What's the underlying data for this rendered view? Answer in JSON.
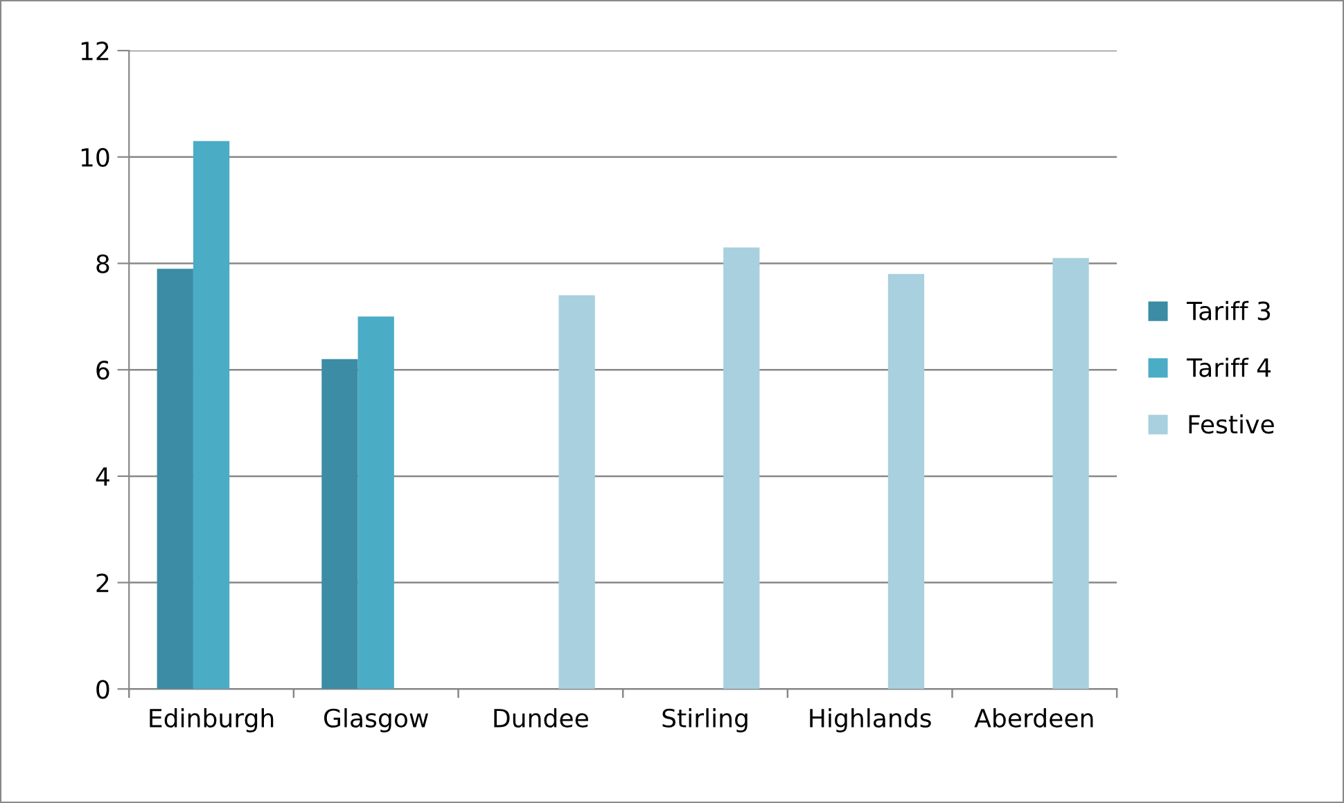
{
  "chart_data": {
    "type": "bar",
    "categories": [
      "Edinburgh",
      "Glasgow",
      "Dundee",
      "Stirling",
      "Highlands",
      "Aberdeen"
    ],
    "series": [
      {
        "name": "Tariff 3",
        "color": "#3b8ca4",
        "values": [
          7.9,
          6.2,
          null,
          null,
          null,
          null
        ]
      },
      {
        "name": "Tariff 4",
        "color": "#4bacc6",
        "values": [
          10.3,
          7.0,
          null,
          null,
          null,
          null
        ]
      },
      {
        "name": "Festive",
        "color": "#a8d0df",
        "values": [
          null,
          null,
          7.4,
          8.3,
          7.8,
          8.1
        ]
      }
    ],
    "ylim": [
      0,
      12
    ],
    "yticks": [
      0,
      2,
      4,
      6,
      8,
      10,
      12
    ],
    "grid": "y",
    "legend": "right"
  }
}
